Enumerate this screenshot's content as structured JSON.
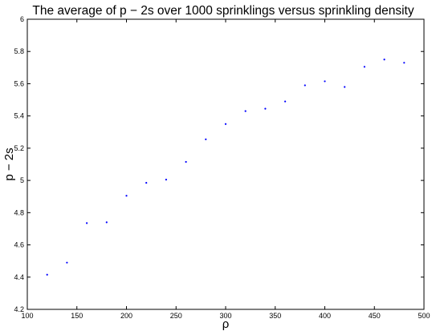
{
  "chart_data": {
    "type": "scatter",
    "title": "The average of p − 2s over 1000 sprinklings versus sprinkling density",
    "xlabel": "ρ",
    "ylabel": "p − 2s",
    "xlim": [
      100,
      500
    ],
    "ylim": [
      4.2,
      6.0
    ],
    "xticks": [
      "100",
      "150",
      "200",
      "250",
      "300",
      "350",
      "400",
      "450",
      "500"
    ],
    "yticks": [
      "4.2",
      "4.4",
      "4.6",
      "4.8",
      "5",
      "5.2",
      "5.4",
      "5.6",
      "5.8",
      "6"
    ],
    "grid": false,
    "marker_color": "#0000ff",
    "series": [
      {
        "x": [
          120,
          140,
          160,
          180,
          200,
          220,
          240,
          260,
          280,
          300,
          320,
          340,
          360,
          380,
          400,
          420,
          440,
          460,
          480
        ],
        "y": [
          4.415,
          4.49,
          4.735,
          4.74,
          4.905,
          4.985,
          5.005,
          5.115,
          5.255,
          5.35,
          5.43,
          5.445,
          5.49,
          5.59,
          5.615,
          5.58,
          5.705,
          5.75,
          5.73
        ]
      }
    ]
  }
}
